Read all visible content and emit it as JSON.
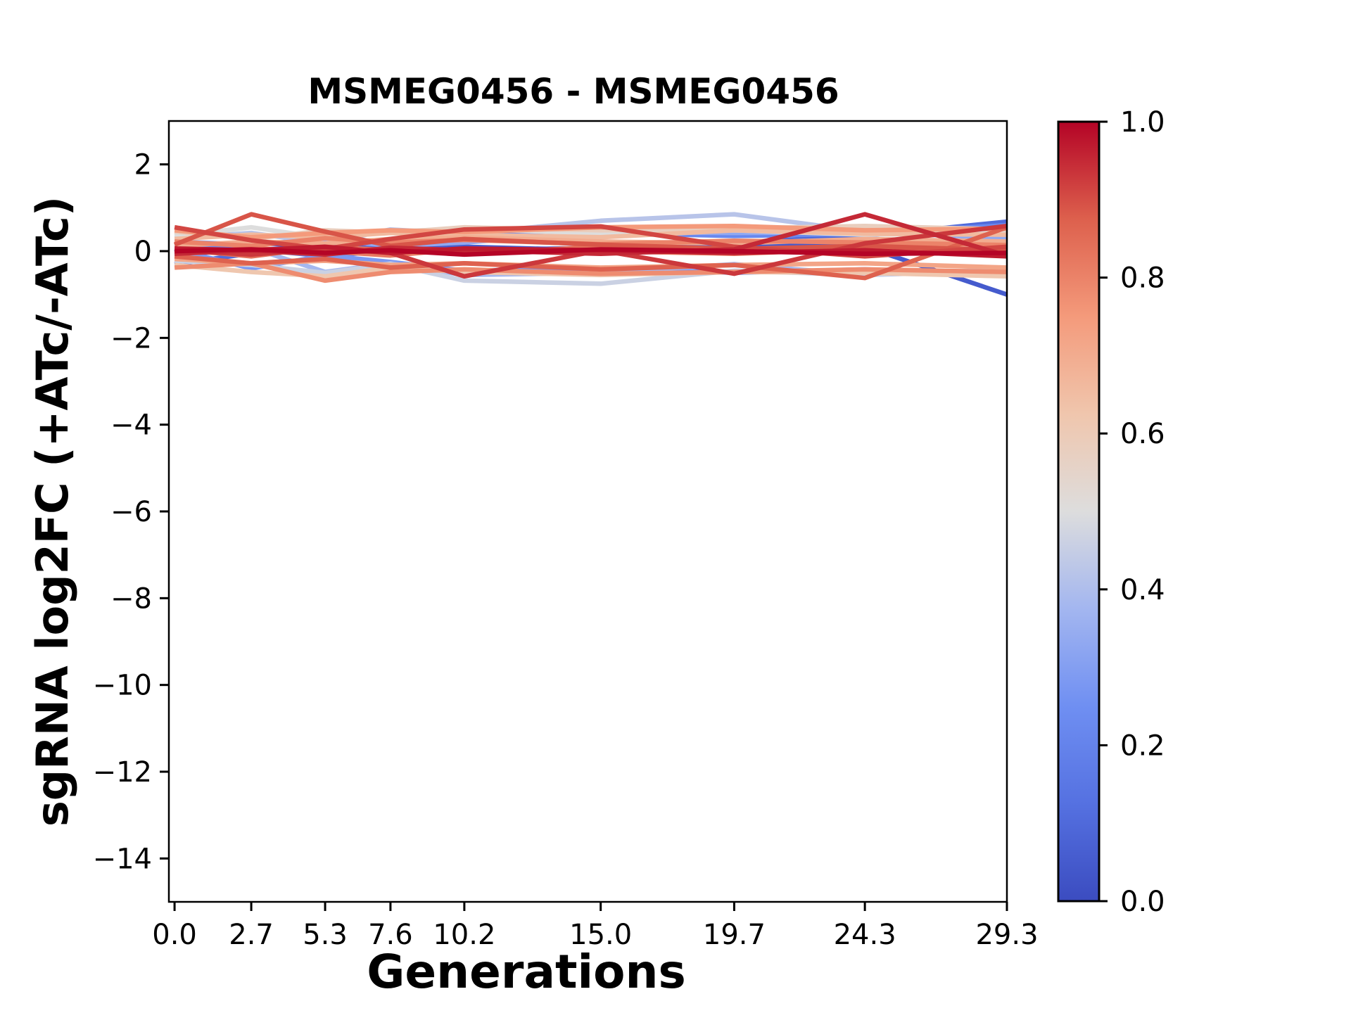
{
  "figure": {
    "background": "#ffffff",
    "axes_edge_color": "#000000"
  },
  "chart_data": {
    "type": "line",
    "title": "MSMEG0456 - MSMEG0456",
    "xlabel": "Generations",
    "ylabel": "sgRNA log2FC (+ATc/-ATc)",
    "grid": false,
    "legend": "none",
    "x": [
      0.0,
      2.7,
      5.3,
      7.6,
      10.2,
      15.0,
      19.7,
      24.3,
      29.3
    ],
    "xlim": [
      -0.2,
      29.3
    ],
    "ylim": [
      -15,
      3
    ],
    "xticks": [
      {
        "value": 0.0,
        "label": "0.0"
      },
      {
        "value": 2.7,
        "label": "2.7"
      },
      {
        "value": 5.3,
        "label": "5.3"
      },
      {
        "value": 7.6,
        "label": "7.6"
      },
      {
        "value": 10.2,
        "label": "10.2"
      },
      {
        "value": 15.0,
        "label": "15.0"
      },
      {
        "value": 19.7,
        "label": "19.7"
      },
      {
        "value": 24.3,
        "label": "24.3"
      },
      {
        "value": 29.3,
        "label": "29.3"
      }
    ],
    "yticks": [
      {
        "value": 2,
        "label": "2"
      },
      {
        "value": 0,
        "label": "0"
      },
      {
        "value": -2,
        "label": "−2"
      },
      {
        "value": -4,
        "label": "−4"
      },
      {
        "value": -6,
        "label": "−6"
      },
      {
        "value": -8,
        "label": "−8"
      },
      {
        "value": -10,
        "label": "−10"
      },
      {
        "value": -12,
        "label": "−12"
      },
      {
        "value": -14,
        "label": "−14"
      }
    ],
    "series": [
      {
        "colormap_value": 0.05,
        "values": [
          0.1,
          0.18,
          0.12,
          0.05,
          0.1,
          0.02,
          0.15,
          0.1,
          -1.0
        ]
      },
      {
        "colormap_value": 0.1,
        "values": [
          -0.3,
          -0.05,
          0.1,
          0.05,
          0.02,
          0.08,
          0.2,
          0.35,
          0.68
        ]
      },
      {
        "colormap_value": 0.22,
        "values": [
          0.18,
          0.05,
          -0.12,
          0.02,
          0.4,
          0.42,
          0.35,
          0.4,
          0.6
        ]
      },
      {
        "colormap_value": 0.28,
        "values": [
          0.05,
          -0.4,
          -0.1,
          -0.25,
          -0.45,
          -0.4,
          -0.5,
          -0.42,
          -0.55
        ]
      },
      {
        "colormap_value": 0.33,
        "values": [
          0.22,
          0.15,
          0.28,
          0.12,
          0.2,
          0.44,
          0.42,
          0.44,
          0.3
        ]
      },
      {
        "colormap_value": 0.38,
        "values": [
          -0.1,
          0.08,
          -0.48,
          -0.28,
          -0.55,
          -0.5,
          -0.3,
          -0.55,
          -0.45
        ]
      },
      {
        "colormap_value": 0.42,
        "values": [
          0.3,
          0.42,
          0.18,
          0.5,
          0.4,
          0.7,
          0.85,
          0.45,
          0.4
        ]
      },
      {
        "colormap_value": 0.46,
        "values": [
          -0.22,
          -0.32,
          -0.5,
          -0.3,
          -0.68,
          -0.75,
          -0.45,
          -0.55,
          -0.42
        ]
      },
      {
        "colormap_value": 0.5,
        "values": [
          0.35,
          0.55,
          0.3,
          0.45,
          0.52,
          0.4,
          0.48,
          0.38,
          0.42
        ]
      },
      {
        "colormap_value": 0.58,
        "values": [
          0.45,
          0.28,
          0.48,
          0.42,
          0.55,
          0.48,
          0.52,
          0.58,
          0.5
        ]
      },
      {
        "colormap_value": 0.62,
        "values": [
          -0.32,
          -0.48,
          -0.58,
          -0.38,
          -0.48,
          -0.55,
          -0.48,
          -0.5,
          -0.58
        ]
      },
      {
        "colormap_value": 0.66,
        "values": [
          0.28,
          0.38,
          0.32,
          0.42,
          0.38,
          0.32,
          0.48,
          0.4,
          0.38
        ]
      },
      {
        "colormap_value": 0.7,
        "values": [
          0.12,
          0.22,
          0.18,
          0.28,
          0.32,
          0.22,
          0.18,
          0.28,
          0.22
        ]
      },
      {
        "colormap_value": 0.72,
        "values": [
          -0.18,
          -0.28,
          -0.22,
          -0.32,
          -0.28,
          -0.38,
          -0.32,
          -0.28,
          -0.38
        ]
      },
      {
        "colormap_value": 0.75,
        "values": [
          0.48,
          0.32,
          0.42,
          0.48,
          0.44,
          0.55,
          0.58,
          0.48,
          0.52
        ]
      },
      {
        "colormap_value": 0.78,
        "values": [
          -0.38,
          -0.28,
          -0.68,
          -0.48,
          -0.42,
          -0.52,
          -0.48,
          -0.42,
          -0.48
        ]
      },
      {
        "colormap_value": 0.8,
        "values": [
          0.22,
          0.12,
          0.3,
          0.2,
          0.26,
          0.16,
          0.24,
          0.2,
          0.14
        ]
      },
      {
        "colormap_value": 0.82,
        "values": [
          -0.05,
          0.06,
          0.0,
          -0.1,
          0.05,
          0.0,
          -0.06,
          0.05,
          0.0
        ]
      },
      {
        "colormap_value": 0.84,
        "values": [
          0.05,
          -0.12,
          0.1,
          0.02,
          -0.06,
          0.1,
          0.06,
          -0.06,
          0.05
        ]
      },
      {
        "colormap_value": 0.87,
        "values": [
          -0.12,
          -0.28,
          -0.18,
          -0.38,
          -0.28,
          -0.42,
          -0.32,
          -0.62,
          0.55
        ]
      },
      {
        "colormap_value": 0.89,
        "values": [
          0.15,
          0.85,
          0.45,
          0.12,
          0.28,
          0.15,
          0.05,
          0.12,
          0.02
        ]
      },
      {
        "colormap_value": 0.91,
        "values": [
          0.55,
          0.25,
          0.05,
          0.28,
          0.5,
          0.57,
          0.1,
          -0.12,
          0.1
        ]
      },
      {
        "colormap_value": 0.93,
        "values": [
          0.02,
          -0.08,
          0.06,
          -0.04,
          -0.58,
          0.02,
          -0.52,
          0.18,
          0.58
        ]
      },
      {
        "colormap_value": 0.95,
        "values": [
          -0.06,
          0.02,
          -0.08,
          0.08,
          0.02,
          -0.06,
          0.04,
          0.85,
          -0.1
        ]
      },
      {
        "colormap_value": 0.97,
        "values": [
          0.06,
          0.02,
          0.1,
          -0.04,
          0.06,
          0.02,
          -0.04,
          0.02,
          -0.12
        ]
      },
      {
        "colormap_value": 1.0,
        "values": [
          0.0,
          0.04,
          -0.04,
          0.02,
          -0.08,
          0.04,
          0.0,
          -0.06,
          -0.04
        ]
      }
    ],
    "colorbar": {
      "orientation": "vertical",
      "min": 0.0,
      "max": 1.0,
      "colormap": "coolwarm",
      "ticks": [
        {
          "value": 1.0,
          "label": "1.0"
        },
        {
          "value": 0.8,
          "label": "0.8"
        },
        {
          "value": 0.6,
          "label": "0.6"
        },
        {
          "value": 0.4,
          "label": "0.4"
        },
        {
          "value": 0.2,
          "label": "0.2"
        },
        {
          "value": 0.0,
          "label": "0.0"
        }
      ],
      "anchors": [
        {
          "t": 0.0,
          "color": "#3b4cc0"
        },
        {
          "t": 0.125,
          "color": "#5571e1"
        },
        {
          "t": 0.25,
          "color": "#6f8ff2"
        },
        {
          "t": 0.375,
          "color": "#a3b6f0"
        },
        {
          "t": 0.5,
          "color": "#dddddd"
        },
        {
          "t": 0.625,
          "color": "#f0c6ad"
        },
        {
          "t": 0.75,
          "color": "#f49a7b"
        },
        {
          "t": 0.875,
          "color": "#dd604d"
        },
        {
          "t": 1.0,
          "color": "#b40426"
        }
      ]
    }
  }
}
